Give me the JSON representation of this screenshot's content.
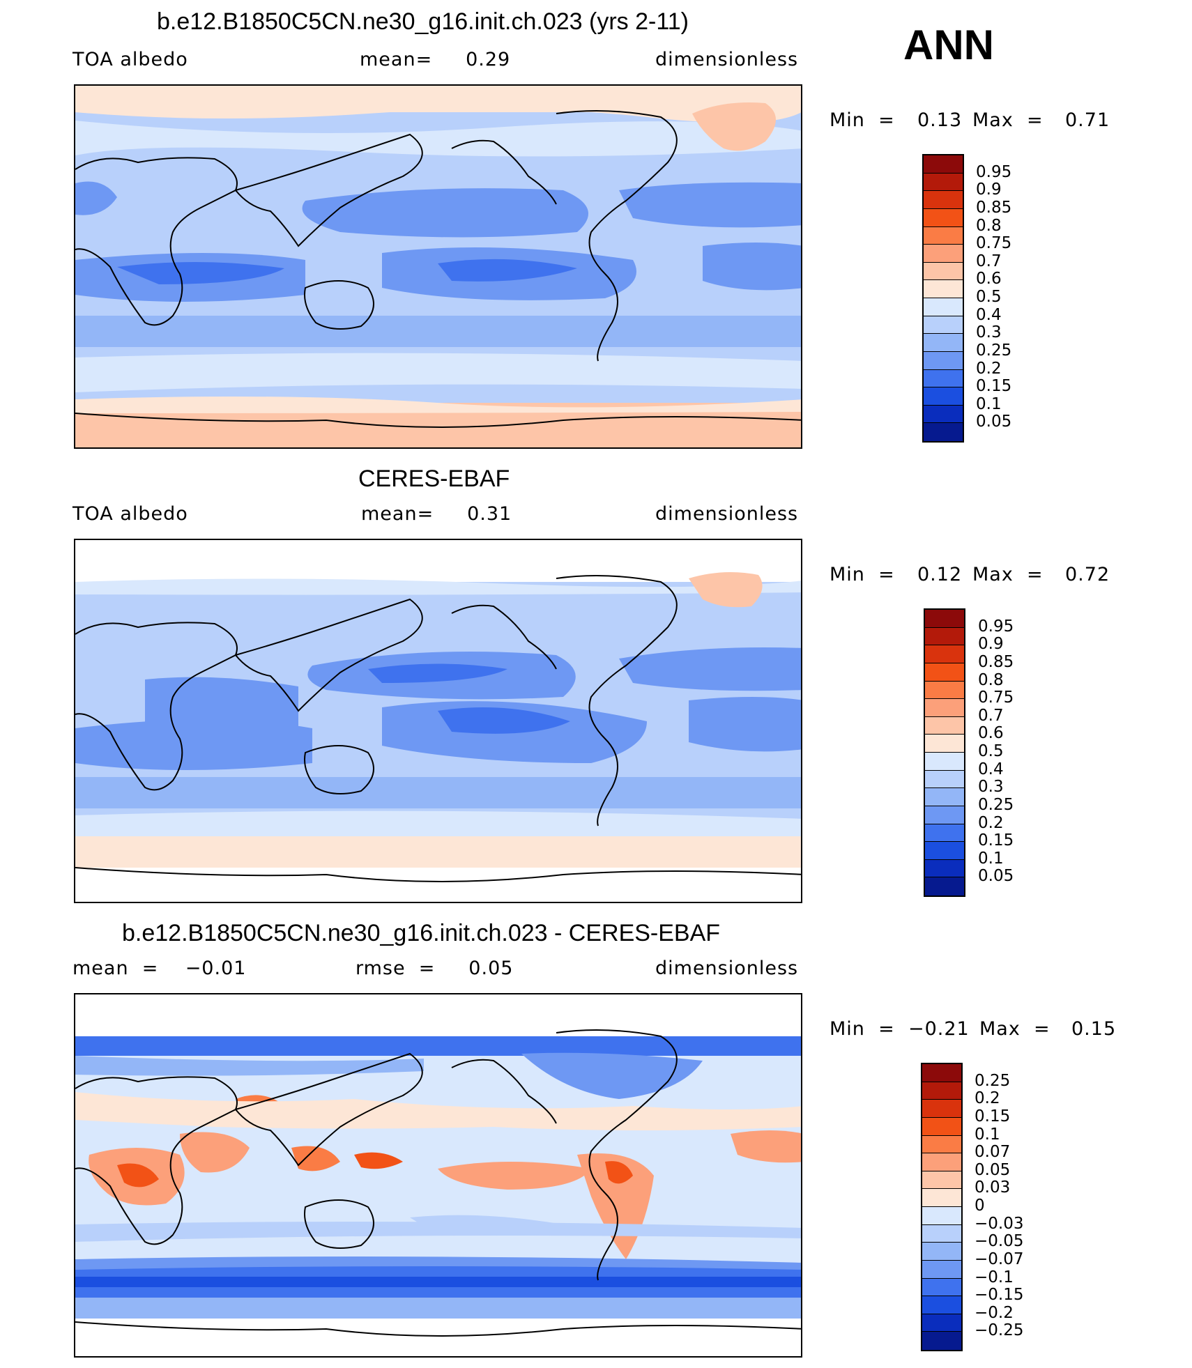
{
  "season": "ANN",
  "panels": [
    {
      "title": "b.e12.B1850C5CN.ne30_g16.init.ch.023 (yrs 2-11)",
      "left_stat": "TOA  albedo",
      "mid_stat": "mean=     0.29",
      "right_stat": "dimensionless",
      "min_label": "Min  =",
      "min_value": "0.13",
      "max_label": "Max  =",
      "max_value": "0.71",
      "levels": [
        "0.95",
        "0.9",
        "0.85",
        "0.8",
        "0.75",
        "0.7",
        "0.6",
        "0.5",
        "0.4",
        "0.3",
        "0.25",
        "0.2",
        "0.15",
        "0.1",
        "0.05"
      ]
    },
    {
      "title": "CERES-EBAF",
      "left_stat": "TOA  albedo",
      "mid_stat": "mean=     0.31",
      "right_stat": "dimensionless",
      "min_label": "Min  =",
      "min_value": "0.12",
      "max_label": "Max  =",
      "max_value": "0.72",
      "levels": [
        "0.95",
        "0.9",
        "0.85",
        "0.8",
        "0.75",
        "0.7",
        "0.6",
        "0.5",
        "0.4",
        "0.3",
        "0.25",
        "0.2",
        "0.15",
        "0.1",
        "0.05"
      ]
    },
    {
      "title": "b.e12.B1850C5CN.ne30_g16.init.ch.023 - CERES-EBAF",
      "left_stat": "mean  =    −0.01",
      "mid_stat": "rmse  =     0.05",
      "right_stat": "dimensionless",
      "min_label": "Min  =",
      "min_value": "−0.21",
      "max_label": "Max  =",
      "max_value": "0.15",
      "levels": [
        "0.25",
        "0.2",
        "0.15",
        "0.1",
        "0.07",
        "0.05",
        "0.03",
        "0",
        "−0.03",
        "−0.05",
        "−0.07",
        "−0.1",
        "−0.15",
        "−0.2",
        "−0.25"
      ]
    }
  ],
  "colorbar_colors": [
    "#8c0a0a",
    "#b31a0a",
    "#d9330d",
    "#f25216",
    "#fa7c45",
    "#fca07a",
    "#fdc5a8",
    "#fde6d6",
    "#d9e8fd",
    "#b8d0fb",
    "#93b6f7",
    "#6e98f3",
    "#3f72ee",
    "#1b4fe0",
    "#0a2dbd",
    "#061a8f"
  ],
  "chart_data": [
    {
      "type": "heatmap",
      "title": "b.e12.B1850C5CN.ne30_g16.init.ch.023 (yrs 2-11)",
      "variable": "TOA  albedo",
      "units": "dimensionless",
      "mean": 0.29,
      "min": 0.13,
      "max": 0.71,
      "contour_levels": [
        0.05,
        0.1,
        0.15,
        0.2,
        0.25,
        0.3,
        0.4,
        0.5,
        0.6,
        0.7,
        0.75,
        0.8,
        0.85,
        0.9,
        0.95
      ]
    },
    {
      "type": "heatmap",
      "title": "CERES-EBAF",
      "variable": "TOA  albedo",
      "units": "dimensionless",
      "mean": 0.31,
      "min": 0.12,
      "max": 0.72,
      "contour_levels": [
        0.05,
        0.1,
        0.15,
        0.2,
        0.25,
        0.3,
        0.4,
        0.5,
        0.6,
        0.7,
        0.75,
        0.8,
        0.85,
        0.9,
        0.95
      ]
    },
    {
      "type": "heatmap",
      "title": "b.e12.B1850C5CN.ne30_g16.init.ch.023 - CERES-EBAF",
      "units": "dimensionless",
      "mean": -0.01,
      "rmse": 0.05,
      "min": -0.21,
      "max": 0.15,
      "contour_levels": [
        -0.25,
        -0.2,
        -0.15,
        -0.1,
        -0.07,
        -0.05,
        -0.03,
        0,
        0.03,
        0.05,
        0.07,
        0.1,
        0.15,
        0.2,
        0.25
      ]
    }
  ]
}
